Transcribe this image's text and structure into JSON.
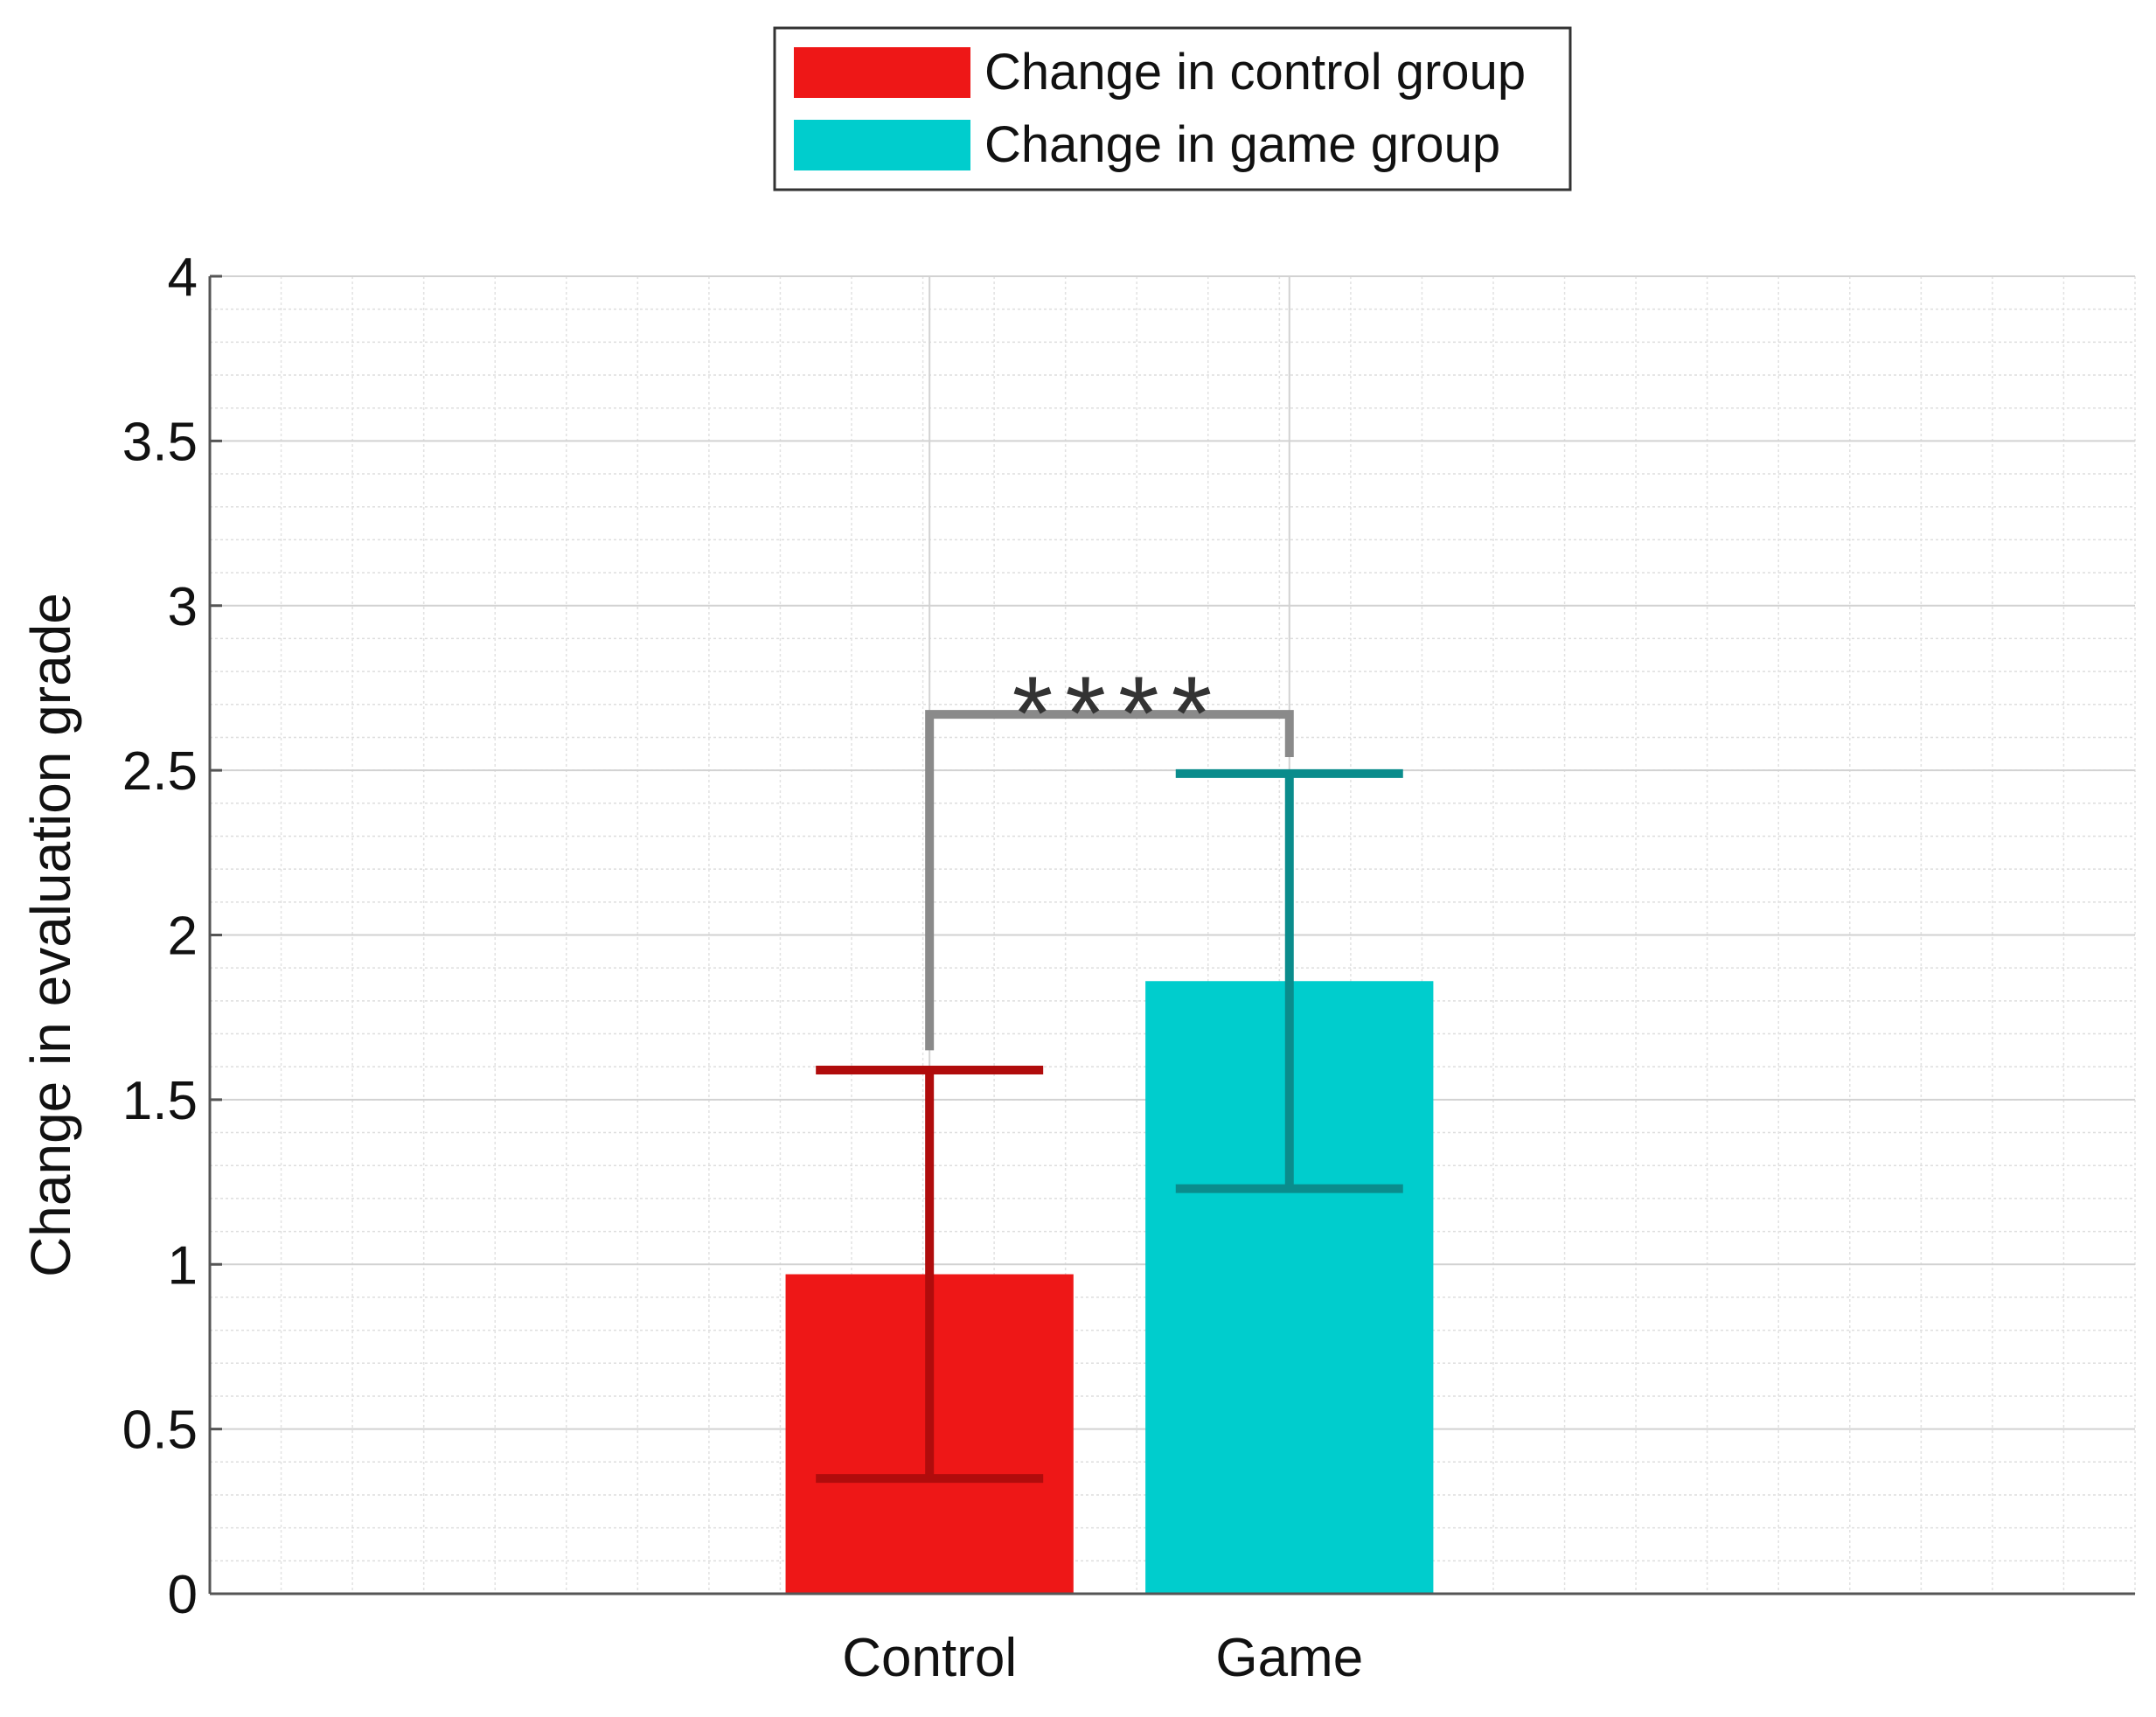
{
  "chart_data": {
    "type": "bar",
    "title": "",
    "xlabel": "",
    "ylabel": "Change in evaluation grade",
    "categories": [
      "Control",
      "Game"
    ],
    "series": [
      {
        "name": "Change in control group",
        "category": "Control",
        "value": 0.97,
        "error_low": 0.35,
        "error_high": 1.59,
        "color": "#ee1717",
        "error_color": "#b00c0c"
      },
      {
        "name": "Change in game group",
        "category": "Game",
        "value": 1.86,
        "error_low": 1.23,
        "error_high": 2.49,
        "color": "#00cdcd",
        "error_color": "#0a8c8c"
      }
    ],
    "ylim": [
      0,
      4
    ],
    "yticks": [
      "0",
      "0.5",
      "1",
      "1.5",
      "2",
      "2.5",
      "3",
      "3.5",
      "4"
    ],
    "ytick_values": [
      0,
      0.5,
      1,
      1.5,
      2,
      2.5,
      3,
      3.5,
      4
    ],
    "grid": true,
    "minor_grid": true,
    "legend_position": "top-center",
    "significance": {
      "label": "****",
      "from": "Control",
      "to": "Game",
      "level": 2.67,
      "left_end": 1.65,
      "right_end": 2.54,
      "color": "#8a8a8a"
    }
  }
}
